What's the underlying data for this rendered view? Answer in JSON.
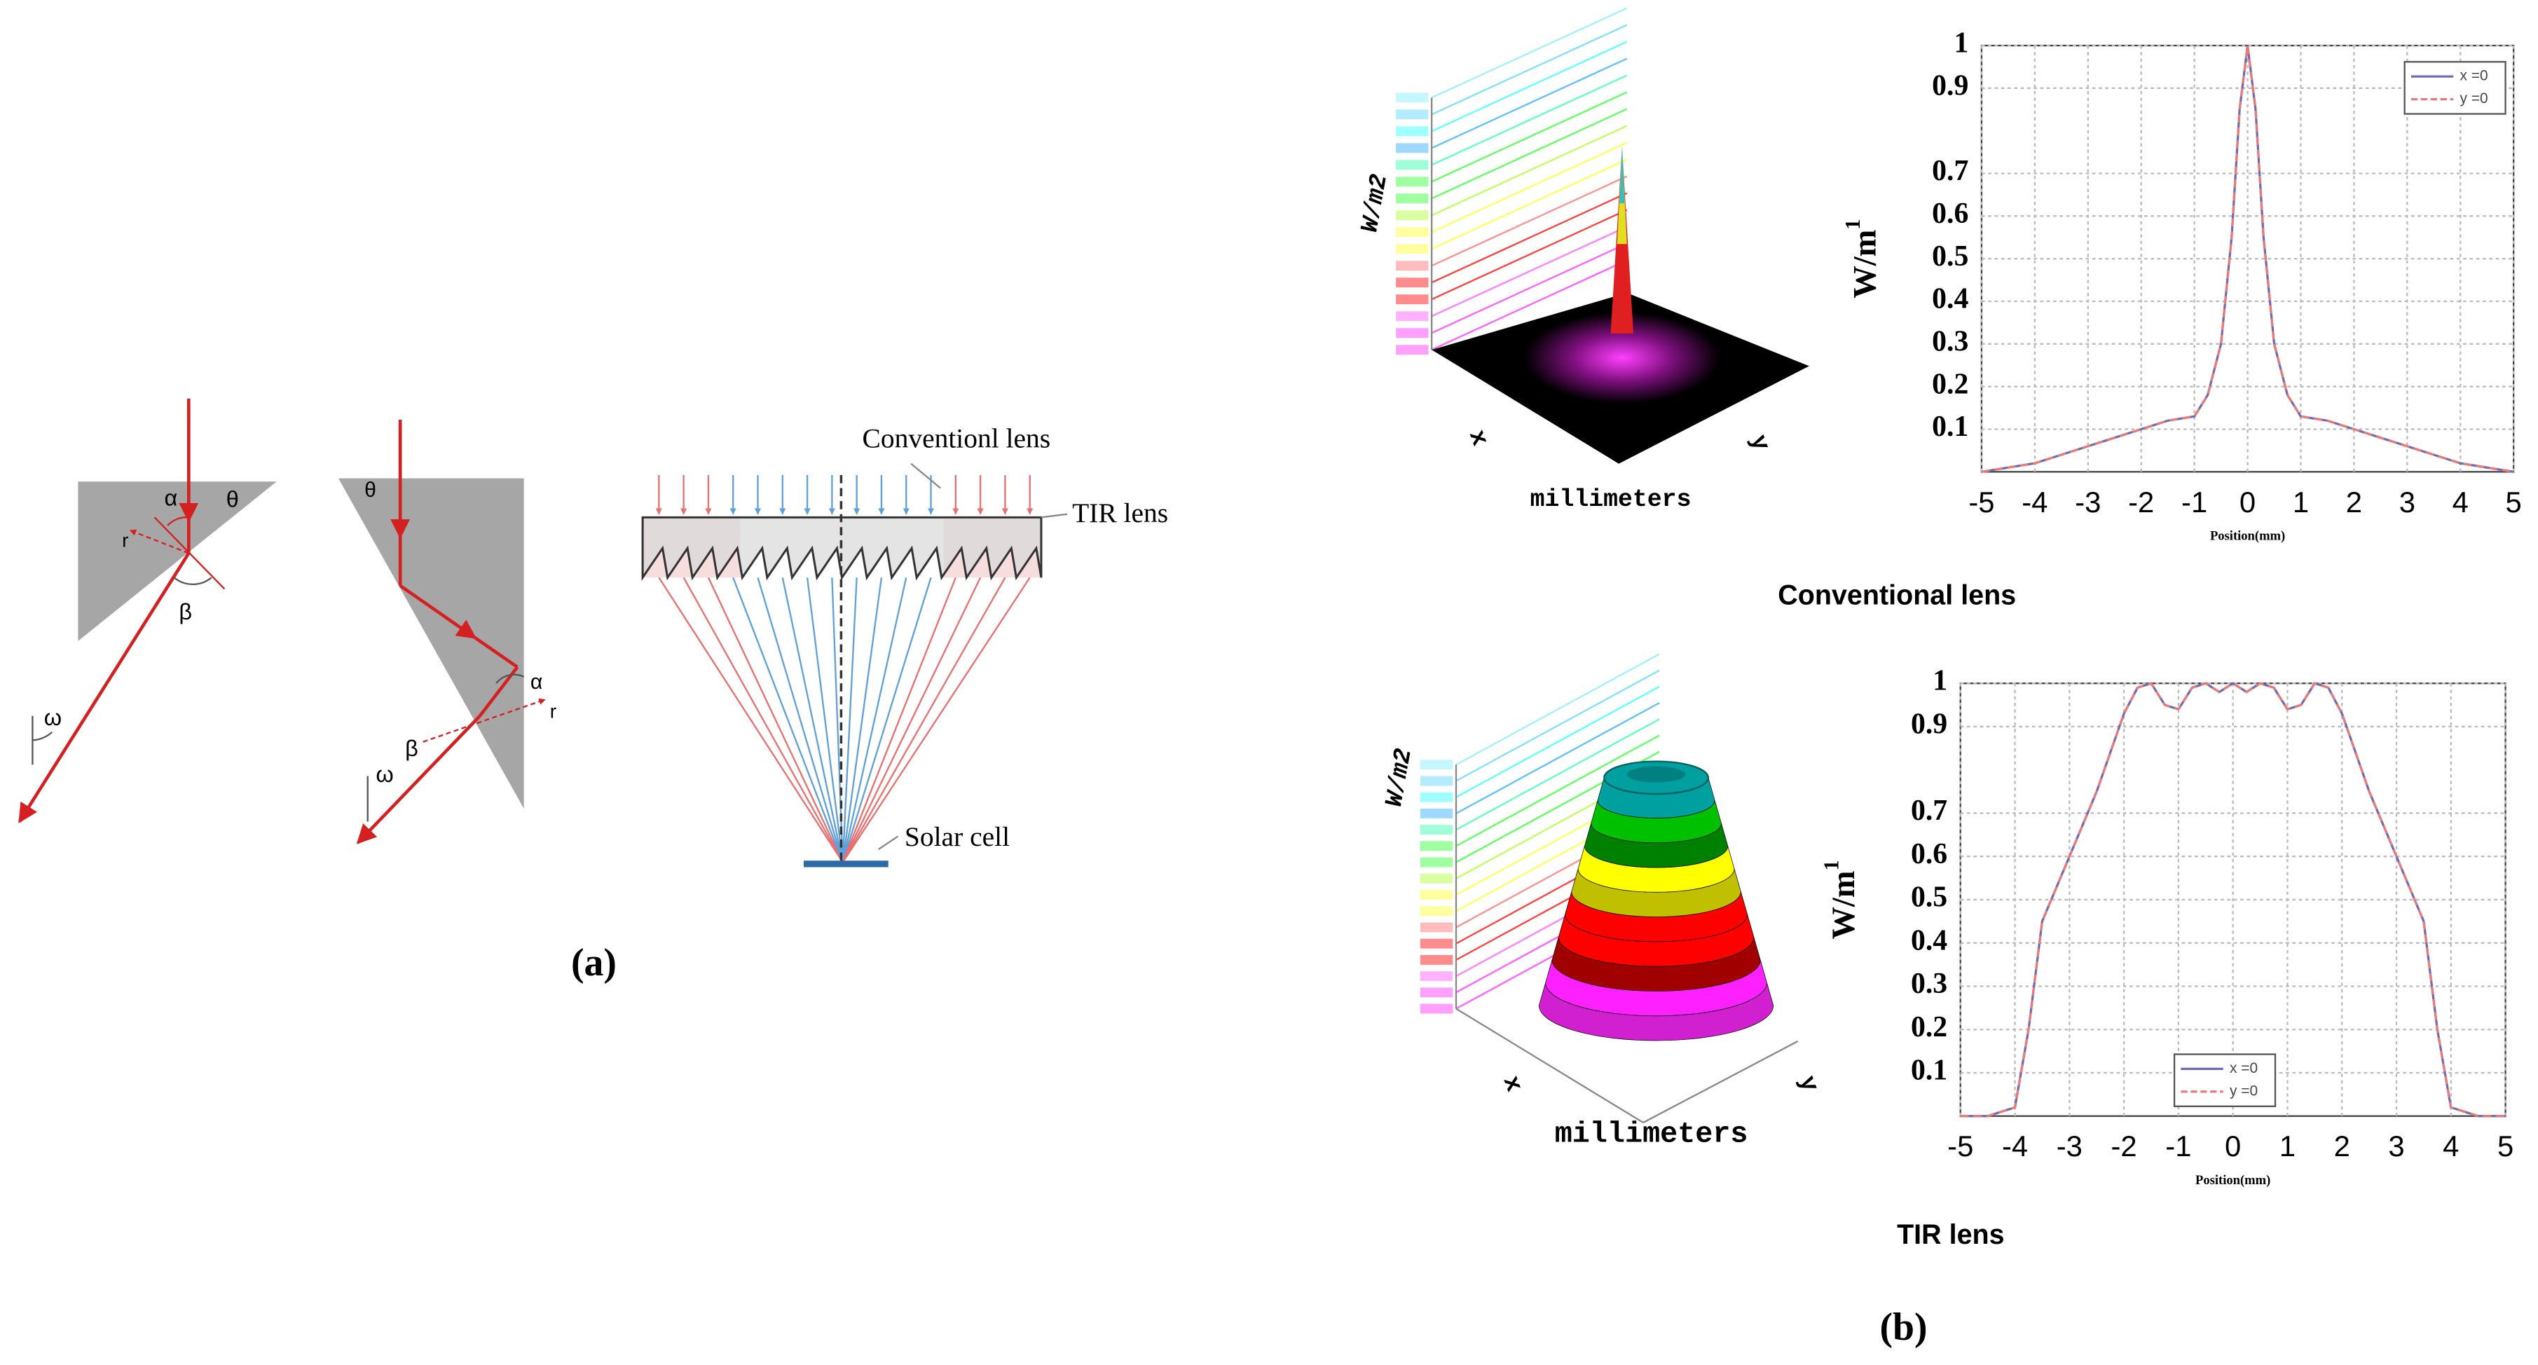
{
  "chart_data": [
    {
      "type": "line",
      "title": "Conventional lens",
      "x": [
        -5,
        -4.5,
        -4,
        -3.5,
        -3,
        -2.5,
        -2,
        -1.5,
        -1,
        -0.75,
        -0.5,
        -0.3,
        -0.15,
        0,
        0.15,
        0.3,
        0.5,
        0.75,
        1,
        1.5,
        2,
        2.5,
        3,
        3.5,
        4,
        4.5,
        5
      ],
      "series": [
        {
          "name": "x =0",
          "color": "#6b6bb8",
          "values": [
            0,
            0.01,
            0.02,
            0.04,
            0.06,
            0.08,
            0.1,
            0.12,
            0.13,
            0.18,
            0.3,
            0.55,
            0.85,
            1,
            0.85,
            0.55,
            0.3,
            0.18,
            0.13,
            0.12,
            0.1,
            0.08,
            0.06,
            0.04,
            0.02,
            0.01,
            0
          ]
        },
        {
          "name": "y =0",
          "color": "#e87a7a",
          "style": "dashed",
          "values": [
            0,
            0.01,
            0.02,
            0.04,
            0.06,
            0.08,
            0.1,
            0.12,
            0.13,
            0.18,
            0.3,
            0.55,
            0.85,
            1,
            0.85,
            0.55,
            0.3,
            0.18,
            0.13,
            0.12,
            0.1,
            0.08,
            0.06,
            0.04,
            0.02,
            0.01,
            0
          ]
        }
      ],
      "xlim": [
        -5,
        5
      ],
      "ylim": [
        0,
        1
      ],
      "xticks": [
        -5,
        -4,
        -3,
        -2,
        -1,
        0,
        1,
        2,
        3,
        4,
        5
      ],
      "yticks": [
        0.1,
        0.2,
        0.3,
        0.4,
        0.5,
        0.6,
        0.7,
        0.9,
        1
      ],
      "xlabel": "Position(mm)",
      "ylabel": "W/m",
      "ylabel_superscript": "1",
      "grid": true,
      "legend": "upper right"
    },
    {
      "type": "line",
      "title": "TIR lens",
      "x": [
        -5,
        -4.5,
        -4,
        -3.75,
        -3.5,
        -3,
        -2.5,
        -2,
        -1.75,
        -1.5,
        -1.25,
        -1,
        -0.75,
        -0.5,
        -0.25,
        0,
        0.25,
        0.5,
        0.75,
        1,
        1.25,
        1.5,
        1.75,
        2,
        2.5,
        3,
        3.5,
        3.75,
        4,
        4.5,
        5
      ],
      "series": [
        {
          "name": "x =0",
          "color": "#6b6bb8",
          "values": [
            0,
            0,
            0.02,
            0.2,
            0.45,
            0.6,
            0.75,
            0.93,
            0.99,
            1,
            0.95,
            0.94,
            0.99,
            1,
            0.98,
            1,
            0.98,
            1,
            0.99,
            0.94,
            0.95,
            1,
            0.99,
            0.93,
            0.75,
            0.6,
            0.45,
            0.2,
            0.02,
            0,
            0
          ]
        },
        {
          "name": "y =0",
          "color": "#e87a7a",
          "style": "dashed",
          "values": [
            0,
            0,
            0.02,
            0.2,
            0.45,
            0.6,
            0.75,
            0.93,
            0.99,
            1,
            0.95,
            0.94,
            0.99,
            1,
            0.98,
            1,
            0.98,
            1,
            0.99,
            0.94,
            0.95,
            1,
            0.99,
            0.93,
            0.75,
            0.6,
            0.45,
            0.2,
            0.02,
            0,
            0
          ]
        }
      ],
      "xlim": [
        -5,
        5
      ],
      "ylim": [
        0,
        1
      ],
      "xticks": [
        -5,
        -4,
        -3,
        -2,
        -1,
        0,
        1,
        2,
        3,
        4,
        5
      ],
      "yticks": [
        0.1,
        0.2,
        0.3,
        0.4,
        0.5,
        0.6,
        0.7,
        0.9,
        1
      ],
      "xlabel": "Position(mm)",
      "ylabel": "W/m",
      "ylabel_superscript": "1",
      "grid": true,
      "legend": "lower center"
    }
  ],
  "panel_a": {
    "caption": "(a)",
    "prism1": {
      "alpha": "α",
      "theta": "θ",
      "r": "r",
      "beta": "β",
      "omega": "ω"
    },
    "prism2": {
      "theta": "θ",
      "alpha": "α",
      "r": "r",
      "beta": "β",
      "omega": "ω"
    },
    "lens": {
      "conventional": "Conventionl  lens",
      "tir": "TIR lens",
      "cell": "Solar cell"
    }
  },
  "panel_b": {
    "caption": "(b)",
    "plots3d": [
      {
        "zlabel": "W/m2",
        "xlabel": "x",
        "ylabel": "y",
        "axis": "millimeters"
      },
      {
        "zlabel": "W/m2",
        "xlabel": "x",
        "ylabel": "y",
        "axis": "millimeters"
      }
    ]
  }
}
